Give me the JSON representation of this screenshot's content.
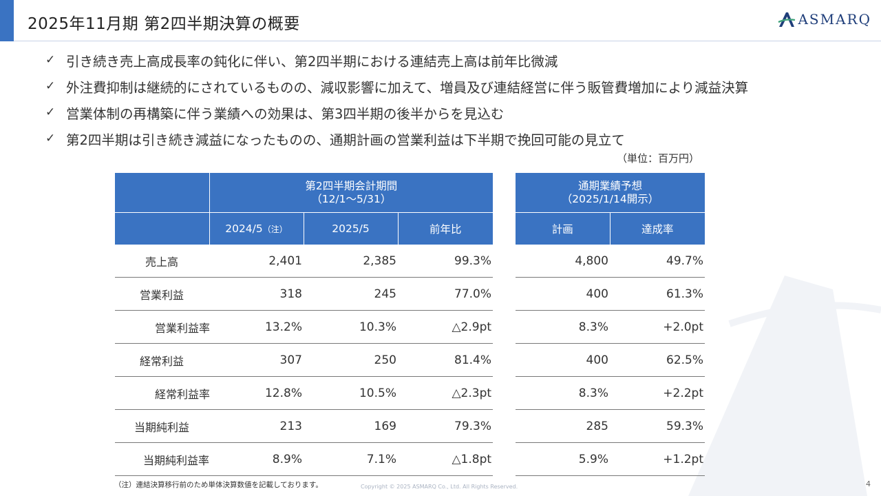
{
  "header": {
    "title": "2025年11月期 第2四半期決算の概要",
    "logo_text": "ASMARQ",
    "accent_color": "#3a73c2"
  },
  "bullets": [
    "引き続き売上高成長率の鈍化に伴い、第2四半期における連結売上高は前年比微減",
    "外注費抑制は継続的にされているものの、減収影響に加えて、増員及び連結経営に伴う販管費増加により減益決算",
    "営業体制の再構築に伴う業績への効果は、第3四半期の後半からを見込む",
    "第2四半期は引き続き減益になったものの、通期計画の営業利益は下半期で挽回可能の見立て"
  ],
  "unit_label": "（単位：百万円）",
  "table_q2": {
    "group_header_line1": "第2四半期会計期間",
    "group_header_line2": "（12/1～5/31）",
    "col_2024": "2024/5",
    "col_2024_note": "（注）",
    "col_2025": "2025/5",
    "col_yoy": "前年比",
    "rows": [
      {
        "label": "売上高",
        "v2024": "2,401",
        "v2025": "2,385",
        "yoy": "99.3%"
      },
      {
        "label": "営業利益",
        "v2024": "318",
        "v2025": "245",
        "yoy": "77.0%"
      },
      {
        "label": "営業利益率",
        "v2024": "13.2%",
        "v2025": "10.3%",
        "yoy": "△2.9pt"
      },
      {
        "label": "経常利益",
        "v2024": "307",
        "v2025": "250",
        "yoy": "81.4%"
      },
      {
        "label": "経常利益率",
        "v2024": "12.8%",
        "v2025": "10.5%",
        "yoy": "△2.3pt"
      },
      {
        "label": "当期純利益",
        "v2024": "213",
        "v2025": "169",
        "yoy": "79.3%"
      },
      {
        "label": "当期純利益率",
        "v2024": "8.9%",
        "v2025": "7.1%",
        "yoy": "△1.8pt"
      }
    ]
  },
  "table_fy": {
    "group_header_line1": "通期業績予想",
    "group_header_line2": "（2025/1/14開示）",
    "col_plan": "計画",
    "col_rate": "達成率",
    "rows": [
      {
        "plan": "4,800",
        "rate": "49.7%"
      },
      {
        "plan": "400",
        "rate": "61.3%"
      },
      {
        "plan": "8.3%",
        "rate": "+2.0pt"
      },
      {
        "plan": "400",
        "rate": "62.5%"
      },
      {
        "plan": "8.3%",
        "rate": "+2.2pt"
      },
      {
        "plan": "285",
        "rate": "59.3%"
      },
      {
        "plan": "5.9%",
        "rate": "+1.2pt"
      }
    ]
  },
  "footnote": "（注）連結決算移行前のため単体決算数値を記載しております。",
  "copyright": "Copyright © 2025 ASMARQ Co., Ltd. All Rights Reserved.",
  "page_number": "4"
}
